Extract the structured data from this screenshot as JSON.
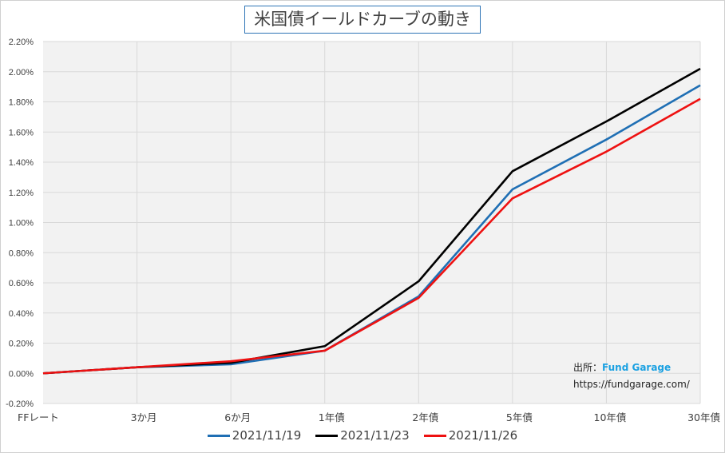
{
  "chart_data": {
    "type": "line",
    "title": "米国債イールドカーブの動き",
    "categories": [
      "FFレート",
      "3か月",
      "6か月",
      "1年債",
      "2年債",
      "5年債",
      "10年債",
      "30年債"
    ],
    "ylim": [
      -0.2,
      2.2
    ],
    "yticks": [
      -0.2,
      0,
      0.2,
      0.4,
      0.6,
      0.8,
      1.0,
      1.2,
      1.4,
      1.6,
      1.8,
      2.0,
      2.2
    ],
    "ytick_labels": [
      "-0.20%",
      "0.00%",
      "0.20%",
      "0.40%",
      "0.60%",
      "0.80%",
      "1.00%",
      "1.20%",
      "1.40%",
      "1.60%",
      "1.80%",
      "2.00%",
      "2.20%"
    ],
    "grid": true,
    "legend_position": "bottom",
    "series": [
      {
        "name": "2021/11/19",
        "color": "#1f6fb4",
        "values": [
          0.0,
          0.04,
          0.06,
          0.15,
          0.51,
          1.22,
          1.55,
          1.91
        ]
      },
      {
        "name": "2021/11/23",
        "color": "#000000",
        "values": [
          0.0,
          0.04,
          0.07,
          0.18,
          0.61,
          1.34,
          1.67,
          2.02
        ]
      },
      {
        "name": "2021/11/26",
        "color": "#ee1111",
        "values": [
          0.0,
          0.04,
          0.08,
          0.15,
          0.5,
          1.16,
          1.47,
          1.82
        ]
      }
    ]
  },
  "source": {
    "label": "出所：",
    "brand": "Fund Garage",
    "url": "https://fundgarage.com/"
  }
}
